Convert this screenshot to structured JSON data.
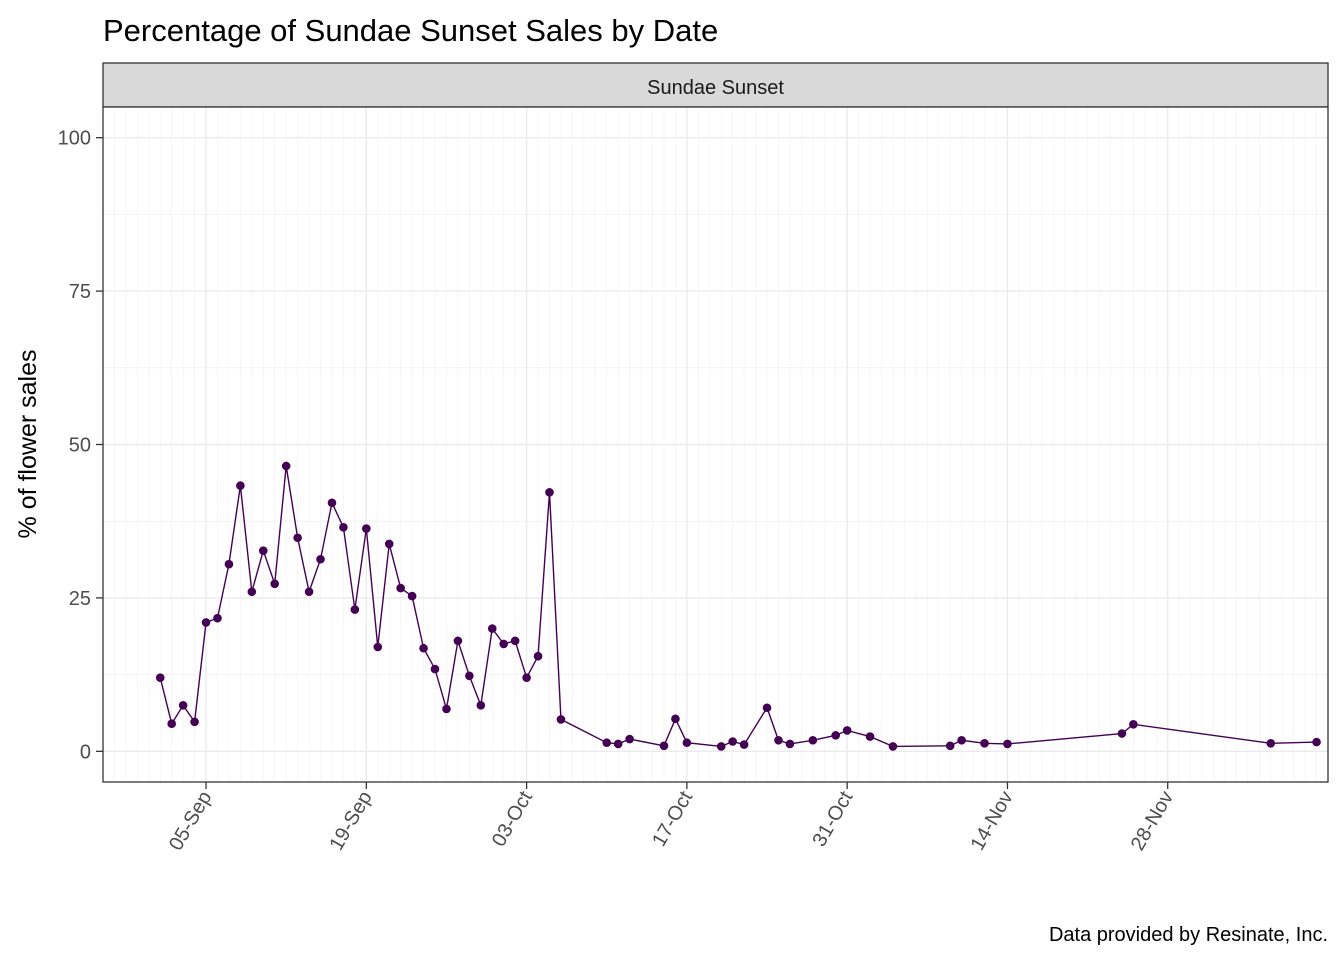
{
  "chart_data": {
    "type": "line",
    "title": "Percentage of Sundae Sunset Sales by Date",
    "facet_label": "Sundae Sunset",
    "xlabel": "",
    "ylabel": "% of flower sales",
    "caption": "Data provided by Resinate, Inc.",
    "ylim": [
      -5,
      105
    ],
    "xlim": [
      "2019-08-27",
      "2019-12-12"
    ],
    "yticks": [
      0,
      25,
      50,
      75,
      100
    ],
    "ytick_labels": [
      "0",
      "25",
      "50",
      "75",
      "100"
    ],
    "xticks": [
      "2019-09-05",
      "2019-09-19",
      "2019-10-03",
      "2019-10-17",
      "2019-10-31",
      "2019-11-14",
      "2019-11-28"
    ],
    "xtick_labels": [
      "05-Sep",
      "19-Sep",
      "03-Oct",
      "17-Oct",
      "31-Oct",
      "14-Nov",
      "28-Nov"
    ],
    "grid": true,
    "legend": "none",
    "series_color": "#440154",
    "x": [
      "2019-09-01",
      "2019-09-02",
      "2019-09-03",
      "2019-09-04",
      "2019-09-05",
      "2019-09-06",
      "2019-09-07",
      "2019-09-08",
      "2019-09-09",
      "2019-09-10",
      "2019-09-11",
      "2019-09-12",
      "2019-09-13",
      "2019-09-14",
      "2019-09-15",
      "2019-09-16",
      "2019-09-17",
      "2019-09-18",
      "2019-09-19",
      "2019-09-20",
      "2019-09-21",
      "2019-09-22",
      "2019-09-23",
      "2019-09-24",
      "2019-09-25",
      "2019-09-26",
      "2019-09-27",
      "2019-09-28",
      "2019-09-29",
      "2019-09-30",
      "2019-10-01",
      "2019-10-02",
      "2019-10-03",
      "2019-10-04",
      "2019-10-05",
      "2019-10-06",
      "2019-10-10",
      "2019-10-11",
      "2019-10-12",
      "2019-10-15",
      "2019-10-16",
      "2019-10-17",
      "2019-10-20",
      "2019-10-21",
      "2019-10-22",
      "2019-10-24",
      "2019-10-25",
      "2019-10-26",
      "2019-10-28",
      "2019-10-30",
      "2019-10-31",
      "2019-11-02",
      "2019-11-04",
      "2019-11-09",
      "2019-11-10",
      "2019-11-12",
      "2019-11-14",
      "2019-11-24",
      "2019-11-25",
      "2019-12-07",
      "2019-12-11"
    ],
    "values": [
      12,
      4.5,
      7.5,
      4.8,
      21,
      21.7,
      30.5,
      43.3,
      26,
      32.7,
      27.3,
      46.5,
      34.8,
      26,
      31.3,
      40.5,
      36.5,
      23.1,
      36.3,
      17,
      33.8,
      26.6,
      25.3,
      16.8,
      13.4,
      6.9,
      18,
      12.3,
      7.5,
      20,
      17.5,
      18,
      12,
      15.5,
      42.2,
      5.2,
      1.4,
      1.2,
      2,
      0.9,
      5.3,
      1.4,
      0.8,
      1.6,
      1.1,
      7.1,
      1.8,
      1.2,
      1.8,
      2.6,
      3.4,
      2.4,
      0.8,
      0.9,
      1.8,
      1.3,
      1.2,
      2.9,
      4.4,
      1.3,
      1.5
    ]
  }
}
